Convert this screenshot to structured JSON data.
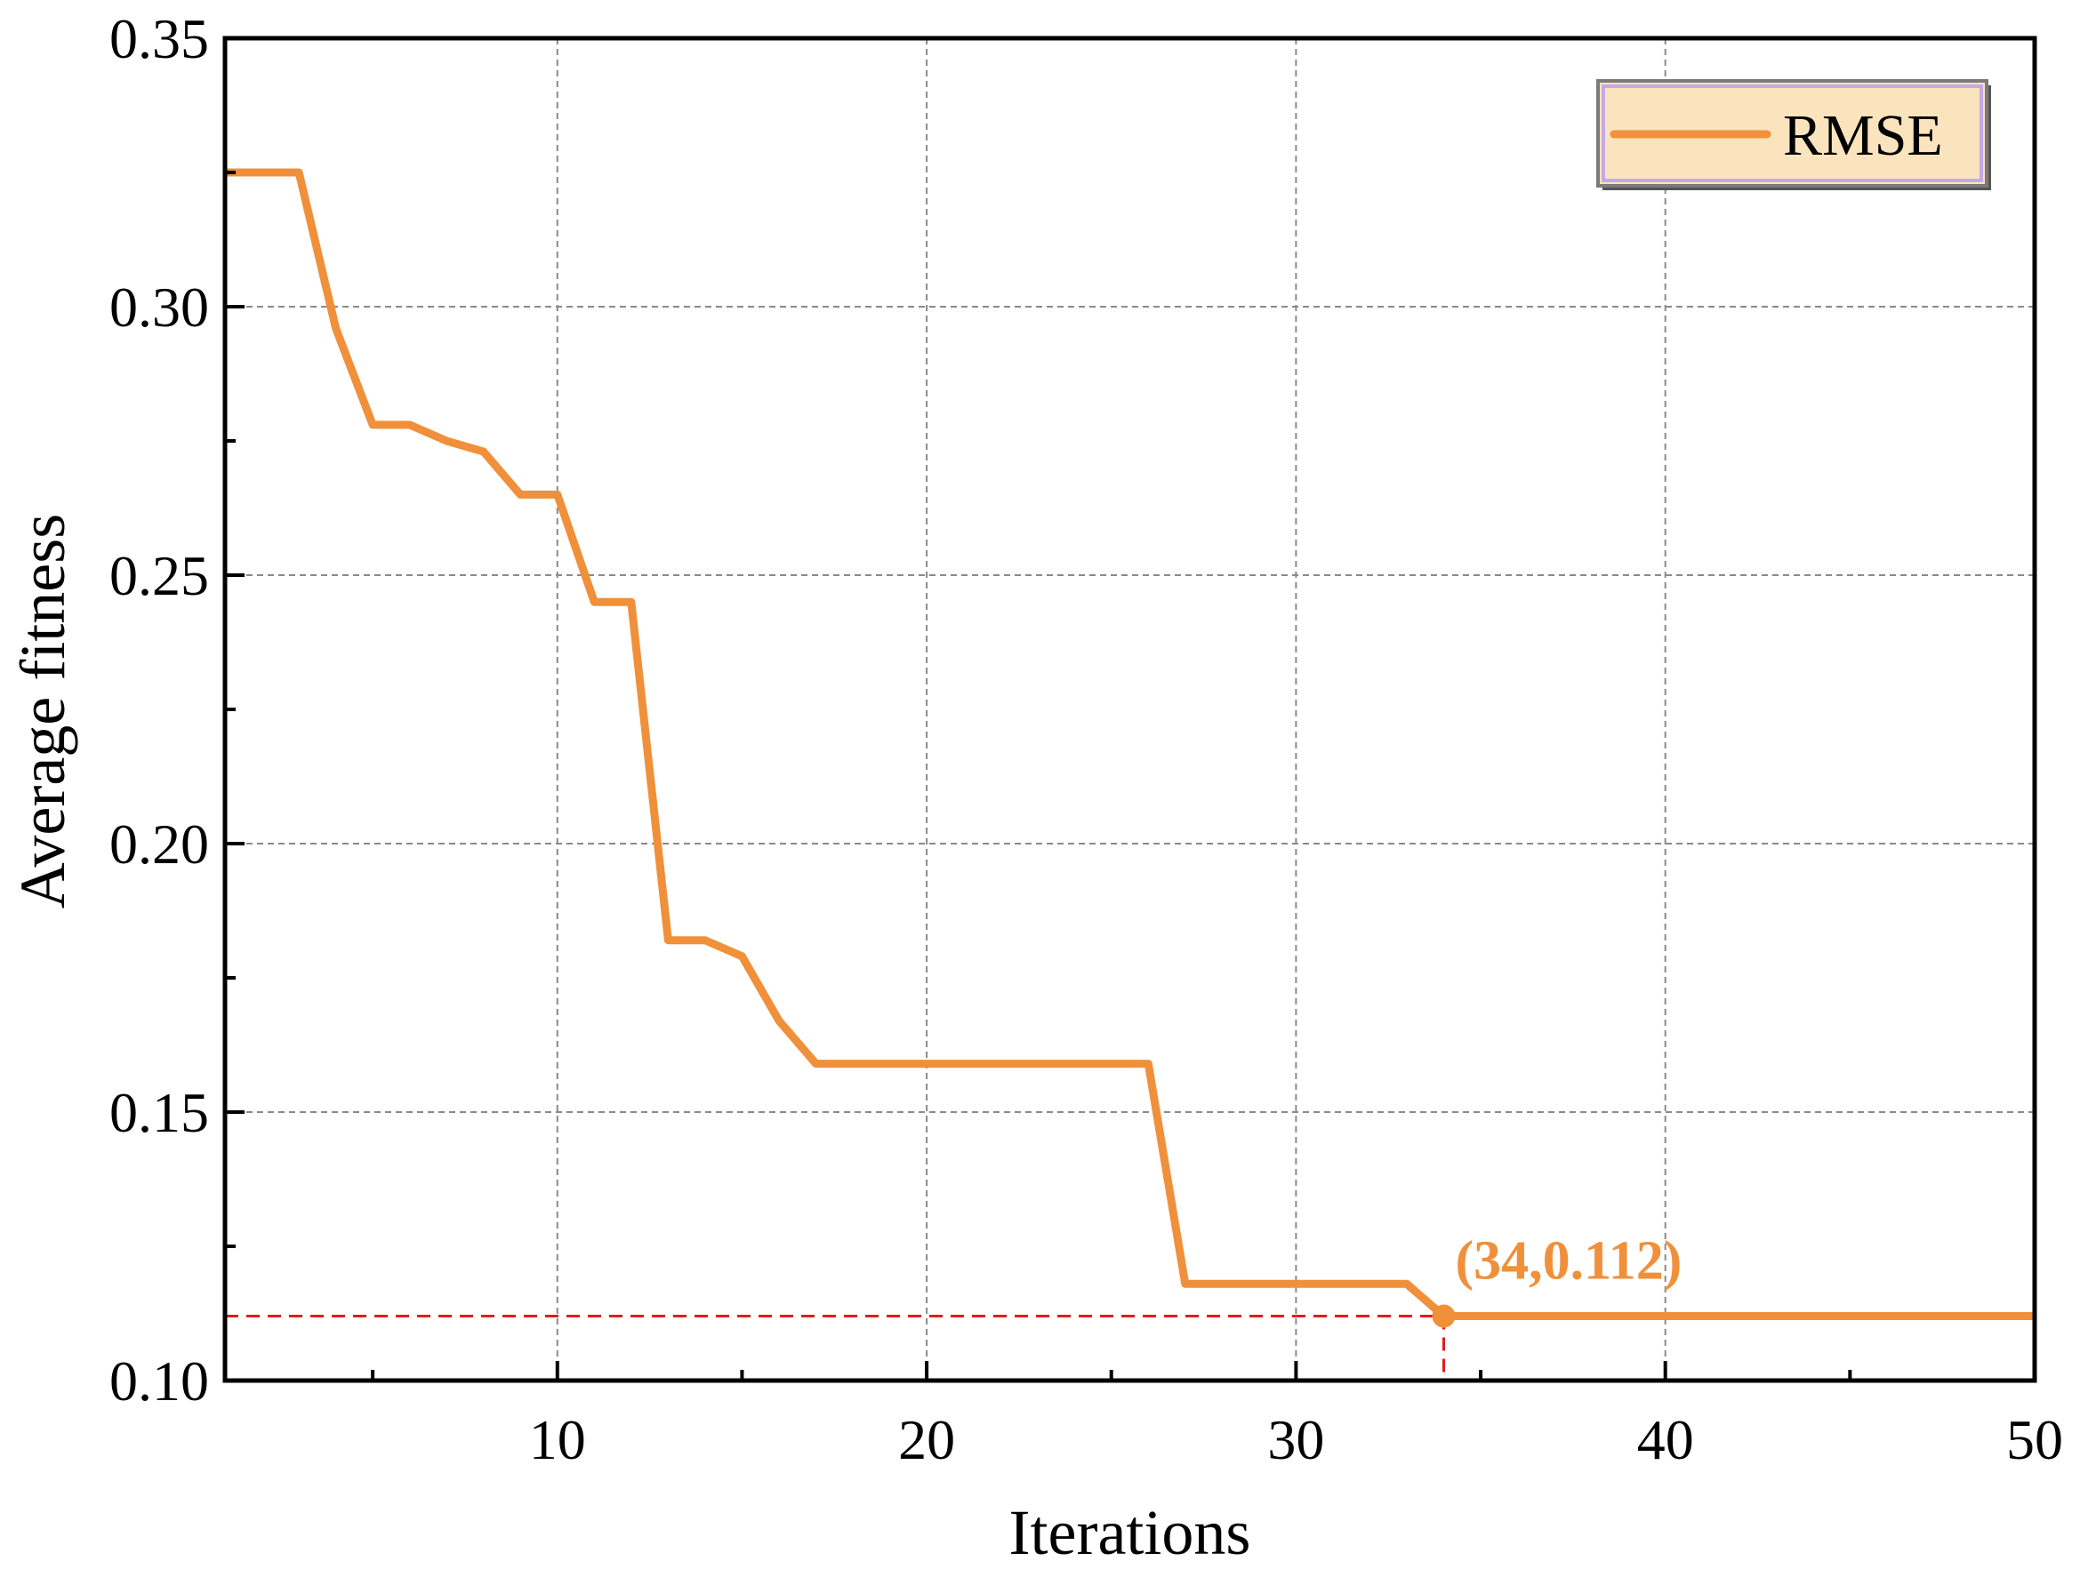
{
  "chart_data": {
    "type": "line",
    "title": "",
    "xlabel": "Iterations",
    "ylabel": "Average fitness",
    "xlim": [
      1,
      50
    ],
    "ylim": [
      0.1,
      0.35
    ],
    "xticks": [
      10,
      20,
      30,
      40,
      50
    ],
    "xtick_labels": [
      "10",
      "20",
      "30",
      "40",
      "50"
    ],
    "xminor_ticks": [
      5,
      15,
      25,
      35,
      45
    ],
    "yticks": [
      0.1,
      0.15,
      0.2,
      0.25,
      0.3,
      0.35
    ],
    "ytick_labels": [
      "0.10",
      "0.15",
      "0.20",
      "0.25",
      "0.30",
      "0.35"
    ],
    "yminor_ticks": [
      0.125,
      0.175,
      0.225,
      0.275,
      0.325
    ],
    "grid": true,
    "legend_position": "top-right",
    "series": [
      {
        "name": "RMSE",
        "color": "#F0903A",
        "x": [
          1,
          2,
          3,
          4,
          5,
          6,
          7,
          8,
          9,
          10,
          11,
          12,
          13,
          14,
          15,
          16,
          17,
          18,
          19,
          20,
          21,
          22,
          23,
          24,
          25,
          26,
          27,
          28,
          29,
          30,
          31,
          32,
          33,
          34,
          35,
          36,
          37,
          38,
          39,
          40,
          41,
          42,
          43,
          44,
          45,
          46,
          47,
          48,
          49,
          50
        ],
        "y": [
          0.325,
          0.325,
          0.325,
          0.296,
          0.278,
          0.278,
          0.275,
          0.273,
          0.265,
          0.265,
          0.245,
          0.245,
          0.182,
          0.182,
          0.179,
          0.167,
          0.159,
          0.159,
          0.159,
          0.159,
          0.159,
          0.159,
          0.159,
          0.159,
          0.159,
          0.159,
          0.118,
          0.118,
          0.118,
          0.118,
          0.118,
          0.118,
          0.118,
          0.112,
          0.112,
          0.112,
          0.112,
          0.112,
          0.112,
          0.112,
          0.112,
          0.112,
          0.112,
          0.112,
          0.112,
          0.112,
          0.112,
          0.112,
          0.112,
          0.112
        ]
      }
    ],
    "annotations": [
      {
        "text": "(34,0.112)",
        "x": 34,
        "y": 0.112,
        "color": "#F0903A",
        "guide_color": "#E8191C"
      }
    ],
    "legend_colors": {
      "background": "#F9E4BE",
      "border": "#7A7A7A",
      "inner_border": "#C6A8E8"
    }
  }
}
